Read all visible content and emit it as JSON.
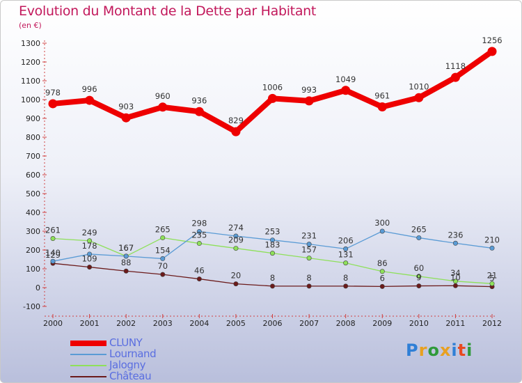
{
  "chart_data": {
    "type": "line",
    "title": "Evolution du Montant de la Dette par Habitant",
    "unit": "(en €)",
    "x": [
      "2000",
      "2001",
      "2002",
      "2003",
      "2004",
      "2005",
      "2006",
      "2007",
      "2008",
      "2009",
      "2010",
      "2011",
      "2012"
    ],
    "ylim": [
      -100,
      1300
    ],
    "yticks": [
      -100,
      0,
      100,
      200,
      300,
      400,
      500,
      600,
      700,
      800,
      900,
      1000,
      1100,
      1200,
      1300
    ],
    "grid": false,
    "legend_position": "bottom-left",
    "series": [
      {
        "name": "CLUNY",
        "color": "#ee0000",
        "values": [
          978,
          996,
          903,
          960,
          936,
          829,
          1006,
          993,
          1049,
          961,
          1010,
          1118,
          1256
        ]
      },
      {
        "name": "Lournand",
        "color": "#5a9bd5",
        "values": [
          140,
          178,
          167,
          154,
          298,
          274,
          253,
          231,
          206,
          300,
          265,
          236,
          210
        ]
      },
      {
        "name": "Jalogny",
        "color": "#8ee05a",
        "values": [
          261,
          249,
          167,
          265,
          235,
          209,
          183,
          157,
          131,
          86,
          60,
          34,
          21
        ]
      },
      {
        "name": "Château",
        "color": "#6b1a1a",
        "values": [
          129,
          109,
          88,
          70,
          46,
          20,
          8,
          8,
          8,
          6,
          9,
          10,
          5
        ]
      }
    ]
  },
  "logo": {
    "letters": [
      "P",
      "r",
      "o",
      "x",
      "i",
      "t",
      "i"
    ],
    "colors": [
      "#2f7fd6",
      "#e8a020",
      "#2f9a3a",
      "#e8a020",
      "#2f7fd6",
      "#e84a20",
      "#2f9a3a"
    ]
  }
}
